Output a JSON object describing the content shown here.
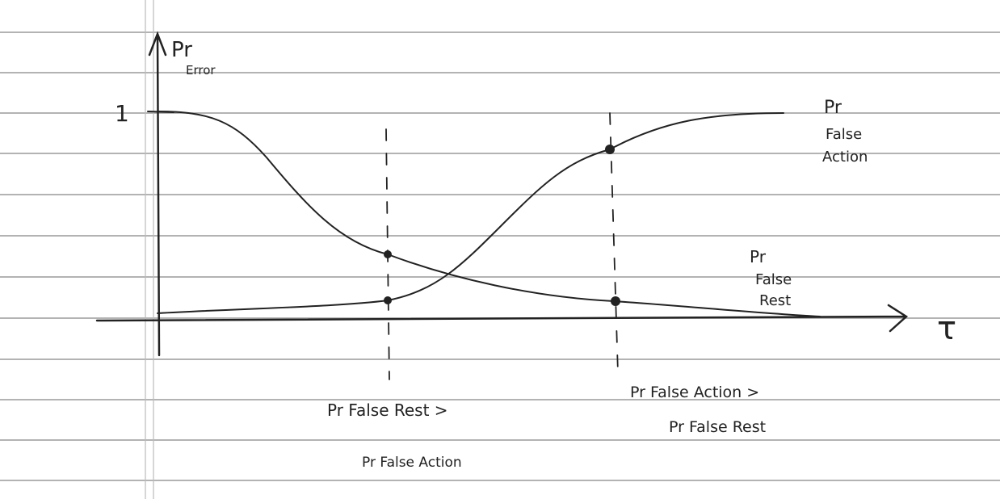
{
  "axes": {
    "y_label": {
      "main": "Pr",
      "sub": "Error"
    },
    "y_tick": "1",
    "x_label": "τ"
  },
  "curves": [
    {
      "label": [
        "Pr",
        "False",
        "Action"
      ]
    },
    {
      "label": [
        "Pr",
        "False",
        "Rest"
      ]
    }
  ],
  "annotations": [
    {
      "lines": [
        "Pr False Rest >",
        "Pr False Action"
      ]
    },
    {
      "lines": [
        "Pr False Action >",
        "Pr False Rest"
      ]
    }
  ]
}
